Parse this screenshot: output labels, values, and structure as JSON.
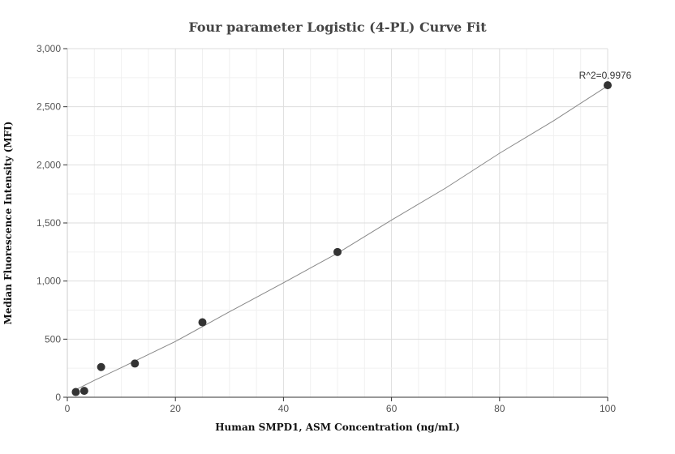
{
  "chart_data": {
    "type": "scatter",
    "title": "Four parameter Logistic (4-PL) Curve Fit",
    "xlabel": "Human SMPD1, ASM Concentration (ng/mL)",
    "ylabel": "Median Fluorescence Intensity (MFI)",
    "xlim": [
      0,
      100
    ],
    "ylim": [
      0,
      3000
    ],
    "x_ticks": [
      0,
      20,
      40,
      60,
      80,
      100
    ],
    "x_tick_labels": [
      "0",
      "20",
      "40",
      "60",
      "80",
      "100"
    ],
    "y_ticks": [
      0,
      500,
      1000,
      1500,
      2000,
      2500,
      3000
    ],
    "y_tick_labels": [
      "0",
      "500",
      "1,000",
      "1,500",
      "2,000",
      "2,500",
      "3,000"
    ],
    "grid": true,
    "series": [
      {
        "x": [
          1.5625,
          3.125,
          6.25,
          12.5,
          25,
          50,
          100
        ],
        "y": [
          45,
          55,
          260,
          290,
          645,
          1250,
          2685
        ]
      }
    ],
    "fit_curve": {
      "x": [
        1.5625,
        5,
        10,
        20,
        30,
        40,
        50,
        60,
        70,
        80,
        90,
        100
      ],
      "y": [
        65,
        145,
        255,
        480,
        735,
        985,
        1240,
        1525,
        1800,
        2100,
        2380,
        2680
      ]
    },
    "annotation": "R^2=0.9976",
    "colors": {
      "points": "#333333",
      "fit_line": "#888888",
      "grid": "#e6e6e6"
    }
  }
}
